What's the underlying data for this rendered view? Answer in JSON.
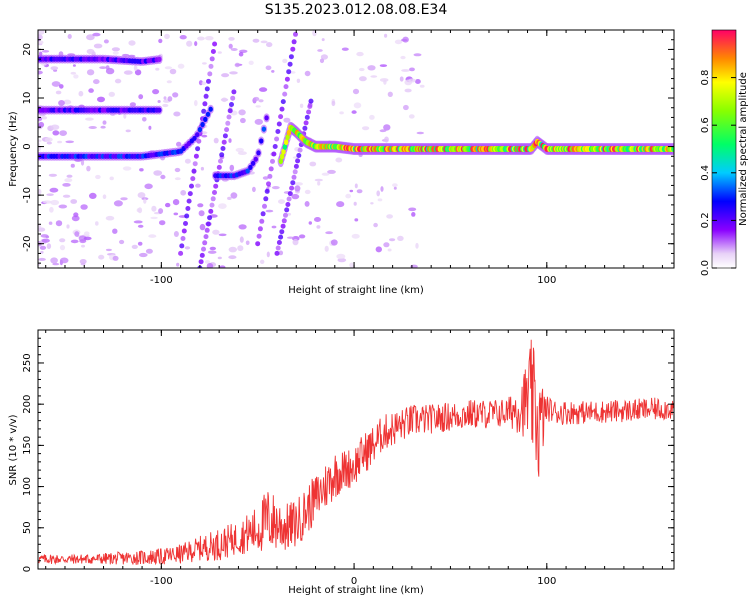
{
  "figure": {
    "title": "S135.2023.012.08.08.E34"
  },
  "chart_data": [
    {
      "type": "heatmap",
      "xlabel": "Height of straight line (km)",
      "ylabel": "Frequency (Hz)",
      "xlim": [
        -164,
        166
      ],
      "ylim": [
        -25,
        24
      ],
      "xticks": [
        -100,
        0,
        100
      ],
      "xtick_labels": [
        "-100",
        "",
        "100"
      ],
      "yticks": [
        -20,
        -10,
        0,
        10,
        20
      ],
      "colorbar": {
        "label": "Normalized spectral amplitude",
        "range": [
          0,
          1
        ],
        "ticks": [
          0.0,
          0.2,
          0.4,
          0.6,
          0.8
        ],
        "tick_labels": [
          "0.0",
          "0.2",
          "0.4",
          "0.6",
          "0.8"
        ]
      },
      "ridges": [
        {
          "name": "",
          "x": [
            -164,
            -150,
            -130,
            -110,
            -100
          ],
          "y": [
            18,
            18,
            18,
            17.5,
            18
          ],
          "amp": 0.25
        },
        {
          "name": "",
          "x": [
            -164,
            -150,
            -130,
            -110,
            -100
          ],
          "y": [
            7.5,
            7.5,
            7.5,
            7.5,
            7.5
          ],
          "amp": 0.25
        },
        {
          "name": "",
          "x": [
            -164,
            -140,
            -120,
            -110,
            -100,
            -90,
            -82,
            -78,
            -74
          ],
          "y": [
            -2,
            -2,
            -2,
            -2,
            -1.5,
            -1,
            2,
            5,
            8
          ],
          "amp": 0.3
        },
        {
          "name": "",
          "x": [
            -72,
            -62,
            -55,
            -50,
            -46,
            -44
          ],
          "y": [
            -6,
            -6,
            -5,
            -2,
            5,
            8
          ],
          "amp": 0.3
        },
        {
          "name": "",
          "x": [
            -38,
            -33,
            -30,
            -25,
            -20,
            -10,
            0,
            20,
            50,
            80,
            92,
            95,
            100,
            130,
            166
          ],
          "y": [
            -3,
            4,
            3,
            1,
            0,
            0,
            -0.5,
            -0.5,
            -0.5,
            -0.5,
            -0.5,
            1,
            -0.5,
            -0.5,
            -0.5
          ],
          "amp": 0.8
        }
      ]
    },
    {
      "type": "line",
      "xlabel": "Height of straight line (km)",
      "ylabel": "SNR (10 * v/v)",
      "xlim": [
        -164,
        166
      ],
      "ylim": [
        0,
        290
      ],
      "xticks": [
        -100,
        0,
        100
      ],
      "xtick_labels": [
        "-100",
        "0",
        "100"
      ],
      "yticks": [
        0,
        50,
        100,
        150,
        200,
        250
      ],
      "color": "#ee3333",
      "series": [
        {
          "name": "",
          "x": [
            -164,
            -140,
            -120,
            -100,
            -90,
            -80,
            -70,
            -60,
            -50,
            -45,
            -40,
            -35,
            -30,
            -25,
            -20,
            -15,
            -10,
            -5,
            0,
            5,
            10,
            15,
            20,
            25,
            30,
            40,
            50,
            60,
            70,
            80,
            88,
            92,
            96,
            100,
            105,
            110,
            120,
            140,
            166
          ],
          "y": [
            12,
            12,
            13,
            15,
            18,
            25,
            30,
            38,
            48,
            60,
            55,
            50,
            55,
            70,
            85,
            100,
            115,
            120,
            125,
            140,
            150,
            165,
            170,
            175,
            180,
            182,
            185,
            188,
            188,
            190,
            200,
            210,
            170,
            195,
            190,
            190,
            190,
            192,
            195
          ],
          "noise": [
            6,
            6,
            8,
            10,
            12,
            15,
            20,
            20,
            30,
            40,
            35,
            30,
            30,
            30,
            30,
            30,
            30,
            25,
            25,
            25,
            25,
            22,
            22,
            20,
            20,
            18,
            18,
            18,
            18,
            18,
            40,
            70,
            70,
            15,
            15,
            15,
            14,
            14,
            14
          ]
        }
      ]
    }
  ]
}
